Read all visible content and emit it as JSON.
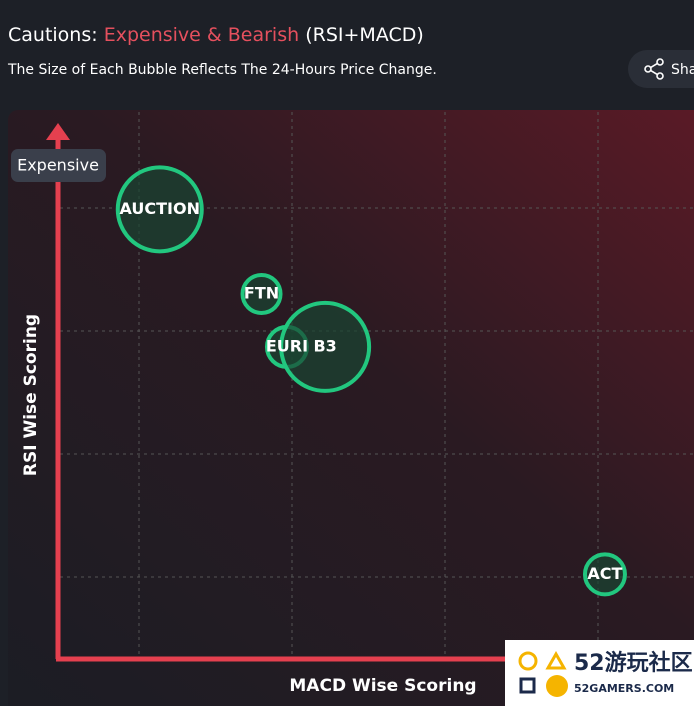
{
  "header": {
    "title_prefix": "Cautions:",
    "title_highlight": "Expensive & Bearish",
    "title_suffix": "(RSI+MACD)",
    "subtitle": "The Size of Each Bubble Reflects The 24-Hours Price Change.",
    "share": "Share"
  },
  "chart_data": {
    "type": "bubble",
    "badge": "Expensive",
    "x_label": "MACD Wise Scoring",
    "y_label": "RSI Wise Scoring",
    "categories": [
      "AUCTION",
      "FTN",
      "EURI",
      "B3",
      "ACT"
    ],
    "x": [
      1.6,
      3.2,
      3.6,
      4.2,
      8.6
    ],
    "values": [
      8.5,
      6.9,
      5.9,
      5.9,
      1.6
    ],
    "sizes": [
      42,
      19,
      20,
      44,
      20
    ],
    "color": "#22c77f",
    "xlim": [
      0,
      10
    ],
    "ylim": [
      0,
      10
    ],
    "grid": true
  },
  "watermark": {
    "brand": "52游玩社区",
    "site": "52GAMERS.COM"
  }
}
